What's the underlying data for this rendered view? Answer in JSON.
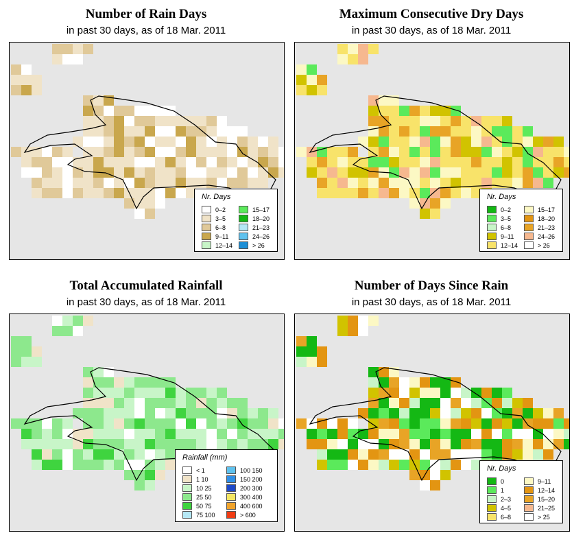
{
  "panels": [
    {
      "title": "Number of Rain Days",
      "subtitle": "in past 30 days, as of  18 Mar. 2011",
      "grid_pattern": "rain_days",
      "legend": {
        "title": "Nr. Days",
        "items": [
          {
            "label": "0–2",
            "color": "#ffffff"
          },
          {
            "label": "3–5",
            "color": "#f0e3c8"
          },
          {
            "label": "6–8",
            "color": "#e0c999"
          },
          {
            "label": "9–11",
            "color": "#c9a74d"
          },
          {
            "label": "12–14",
            "color": "#c8f5c8"
          },
          {
            "label": "15–17",
            "color": "#5bea5b"
          },
          {
            "label": "18–20",
            "color": "#14b814"
          },
          {
            "label": "21–23",
            "color": "#b5e8f5"
          },
          {
            "label": "24–26",
            "color": "#5fc2ee"
          },
          {
            "label": "> 26",
            "color": "#1d8fd6"
          }
        ]
      }
    },
    {
      "title": "Maximum Consecutive Dry Days",
      "subtitle": "in past 30 days, as of  18 Mar. 2011",
      "grid_pattern": "dry_days",
      "legend": {
        "title": "Nr. Days",
        "items": [
          {
            "label": "0–2",
            "color": "#14b814"
          },
          {
            "label": "3–5",
            "color": "#5bea5b"
          },
          {
            "label": "6–8",
            "color": "#c8f5c8"
          },
          {
            "label": "9–11",
            "color": "#d1c300"
          },
          {
            "label": "12–14",
            "color": "#f8e36a"
          },
          {
            "label": "15–17",
            "color": "#fcf8c4"
          },
          {
            "label": "18–20",
            "color": "#e39512"
          },
          {
            "label": "21–23",
            "color": "#e8a426"
          },
          {
            "label": "24–26",
            "color": "#f6b88f"
          },
          {
            "label": "> 26",
            "color": "#ffffff"
          }
        ]
      }
    },
    {
      "title": "Total Accumulated Rainfall",
      "subtitle": "in past 30 days, as of  18 Mar. 2011",
      "grid_pattern": "rainfall",
      "legend": {
        "title": "Rainfall (mm)",
        "items": [
          {
            "label": "< 1",
            "color": "#ffffff"
          },
          {
            "label": "1    10",
            "color": "#f0e3c8"
          },
          {
            "label": "10    25",
            "color": "#c8f5c8"
          },
          {
            "label": "25    50",
            "color": "#8de88d"
          },
          {
            "label": "50    75",
            "color": "#3fd43f"
          },
          {
            "label": "75  100",
            "color": "#b5e8f5"
          },
          {
            "label": "100  150",
            "color": "#5fc2ee"
          },
          {
            "label": "150  200",
            "color": "#2f8fe6"
          },
          {
            "label": "200  300",
            "color": "#1d49c8"
          },
          {
            "label": "300  400",
            "color": "#f5e663"
          },
          {
            "label": "400  600",
            "color": "#f0a32b"
          },
          {
            "label": "> 600",
            "color": "#f03c14"
          }
        ]
      }
    },
    {
      "title": "Number of Days Since Rain",
      "subtitle": "in past 30 days, as of  18 Mar. 2011",
      "grid_pattern": "since_rain",
      "legend": {
        "title": "Nr. Days",
        "items": [
          {
            "label": "0",
            "color": "#14b814"
          },
          {
            "label": "1",
            "color": "#5bea5b"
          },
          {
            "label": "2–3",
            "color": "#c8f5c8"
          },
          {
            "label": "4–5",
            "color": "#d1c300"
          },
          {
            "label": "6–8",
            "color": "#f8e36a"
          },
          {
            "label": "9–11",
            "color": "#fcf8c4"
          },
          {
            "label": "12–14",
            "color": "#e39512"
          },
          {
            "label": "15–20",
            "color": "#e8a426"
          },
          {
            "label": "21–25",
            "color": "#f6b88f"
          },
          {
            "label": "> 25",
            "color": "#ffffff"
          }
        ]
      }
    }
  ]
}
